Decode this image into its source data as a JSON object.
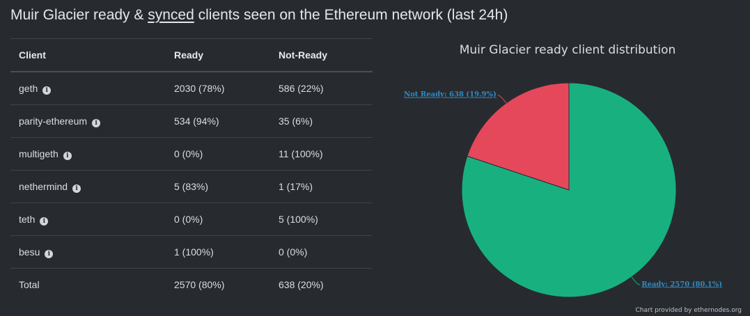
{
  "page": {
    "title_pre": "Muir Glacier ready & ",
    "title_link": "synced",
    "title_post": " clients seen on the Ethereum network (last 24h)"
  },
  "table": {
    "headers": [
      "Client",
      "Ready",
      "Not-Ready"
    ],
    "rows": [
      {
        "client": "geth",
        "ready": "2030 (78%)",
        "not_ready": "586 (22%)"
      },
      {
        "client": "parity-ethereum",
        "ready": "534 (94%)",
        "not_ready": "35 (6%)"
      },
      {
        "client": "multigeth",
        "ready": "0 (0%)",
        "not_ready": "11 (100%)"
      },
      {
        "client": "nethermind",
        "ready": "5 (83%)",
        "not_ready": "1 (17%)"
      },
      {
        "client": "teth",
        "ready": "0 (0%)",
        "not_ready": "5 (100%)"
      },
      {
        "client": "besu",
        "ready": "1 (100%)",
        "not_ready": "0 (0%)"
      }
    ],
    "total": {
      "label": "Total",
      "ready": "2570 (80%)",
      "not_ready": "638 (20%)"
    },
    "info_icon": "info-circle-icon"
  },
  "chart_data": {
    "type": "pie",
    "title": "Muir Glacier ready client distribution",
    "slices": [
      {
        "name": "Not Ready",
        "value": 638,
        "percent": 19.9,
        "color": "#e5485a",
        "label": "Not Ready: 638 (19.9%)"
      },
      {
        "name": "Ready",
        "value": 2570,
        "percent": 80.1,
        "color": "#19b07f",
        "label": "Ready: 2570 (80.1%)"
      }
    ],
    "credit": "Chart provided by ethernodes.org"
  }
}
